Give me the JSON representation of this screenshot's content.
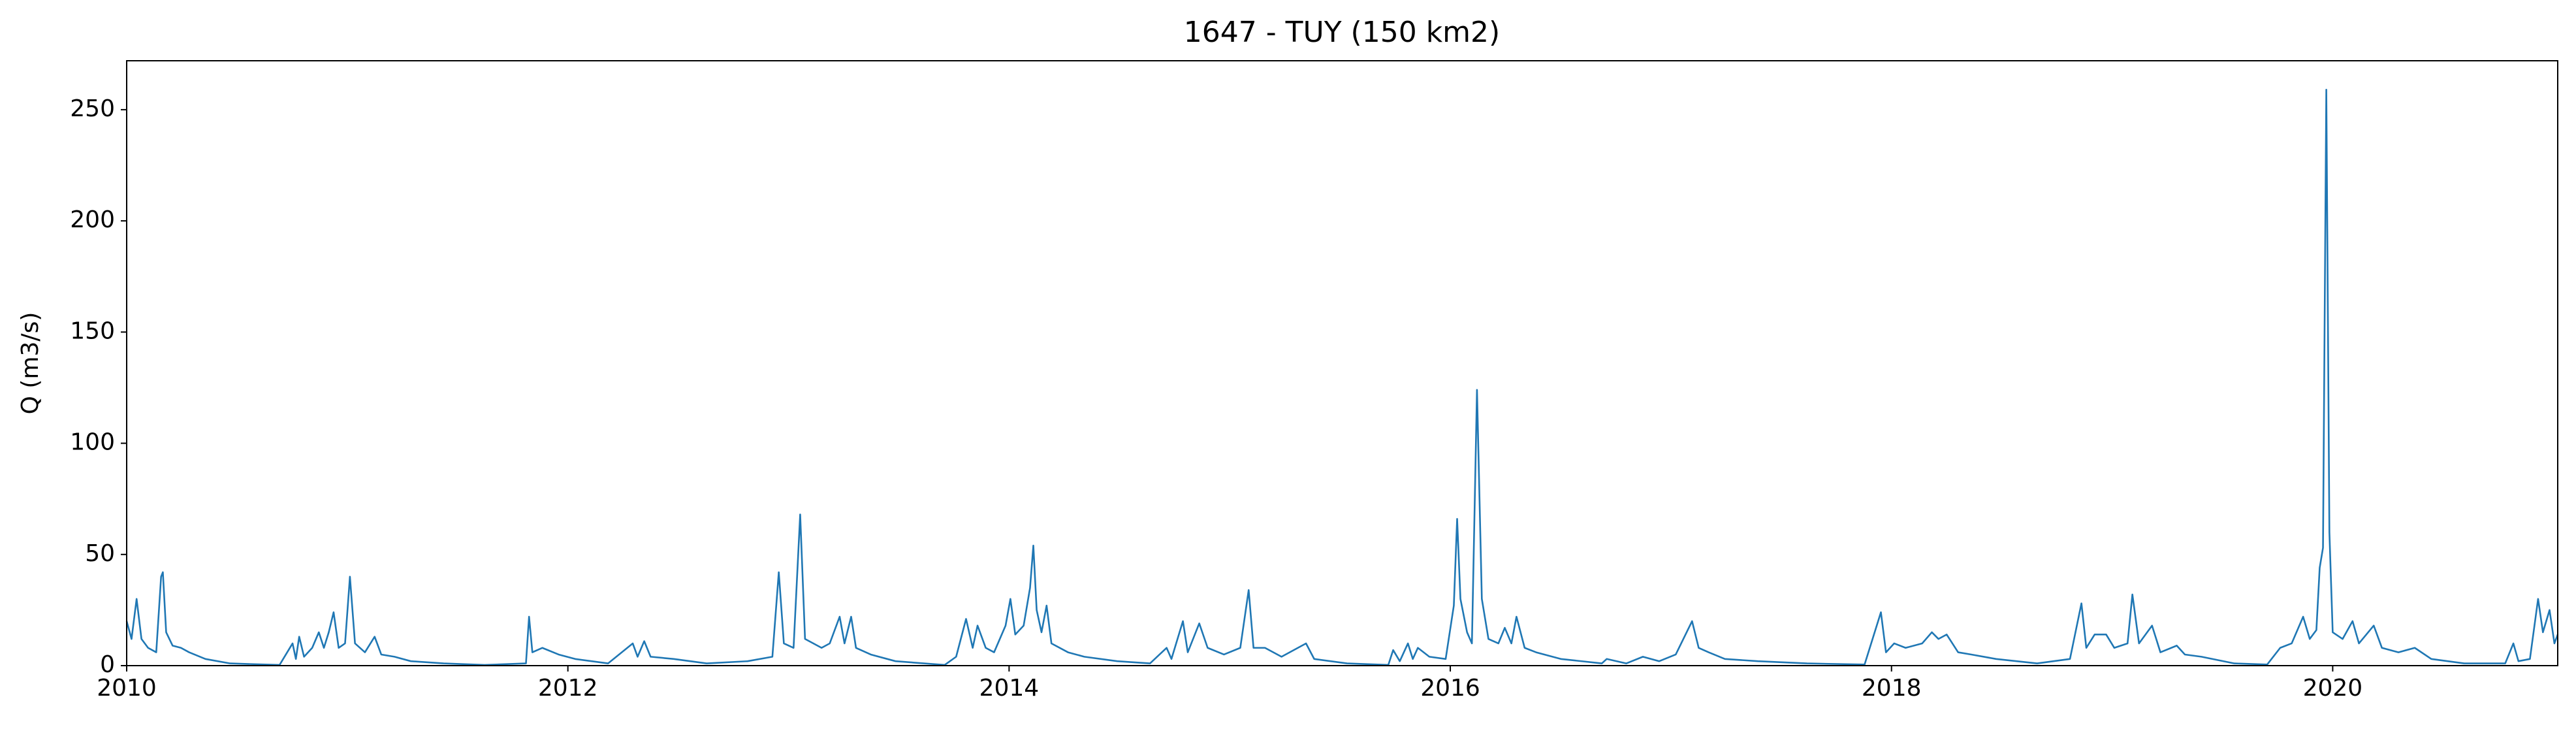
{
  "chart_data": {
    "type": "line",
    "title": "1647 - TUY (150 km2)",
    "y_label": "Q (m3/s)",
    "color": "#1f77b4",
    "x": [
      2010.0,
      2010.022,
      2010.045,
      2010.067,
      2010.097,
      2010.134,
      2010.156,
      2010.164,
      2010.179,
      2010.208,
      2010.246,
      2010.283,
      2010.357,
      2010.469,
      2010.693,
      2010.752,
      2010.767,
      2010.782,
      2010.804,
      2010.841,
      2010.871,
      2010.894,
      2010.916,
      2010.938,
      2010.961,
      2010.99,
      2011.012,
      2011.035,
      2011.08,
      2011.124,
      2011.154,
      2011.214,
      2011.288,
      2011.437,
      2011.623,
      2011.81,
      2011.824,
      2011.839,
      2011.884,
      2011.958,
      2012.033,
      2012.182,
      2012.294,
      2012.316,
      2012.346,
      2012.375,
      2012.48,
      2012.629,
      2012.815,
      2012.927,
      2012.956,
      2012.979,
      2013.023,
      2013.053,
      2013.075,
      2013.15,
      2013.187,
      2013.232,
      2013.254,
      2013.284,
      2013.306,
      2013.373,
      2013.485,
      2013.708,
      2013.76,
      2013.805,
      2013.835,
      2013.857,
      2013.894,
      2013.932,
      2013.984,
      2014.006,
      2014.028,
      2014.066,
      2014.095,
      2014.11,
      2014.125,
      2014.147,
      2014.17,
      2014.192,
      2014.267,
      2014.341,
      2014.49,
      2014.639,
      2014.714,
      2014.736,
      2014.788,
      2014.81,
      2014.862,
      2014.9,
      2014.974,
      2015.048,
      2015.086,
      2015.108,
      2015.16,
      2015.235,
      2015.346,
      2015.383,
      2015.532,
      2015.719,
      2015.741,
      2015.771,
      2015.808,
      2015.83,
      2015.853,
      2015.905,
      2015.979,
      2016.016,
      2016.031,
      2016.046,
      2016.076,
      2016.098,
      2016.121,
      2016.143,
      2016.173,
      2016.218,
      2016.247,
      2016.277,
      2016.3,
      2016.337,
      2016.389,
      2016.501,
      2016.687,
      2016.709,
      2016.798,
      2016.873,
      2016.947,
      2017.022,
      2017.096,
      2017.126,
      2017.171,
      2017.245,
      2017.394,
      2017.617,
      2017.878,
      2017.952,
      2017.975,
      2018.012,
      2018.064,
      2018.139,
      2018.183,
      2018.213,
      2018.25,
      2018.302,
      2018.362,
      2018.474,
      2018.66,
      2018.809,
      2018.861,
      2018.883,
      2018.921,
      2018.973,
      2019.01,
      2019.07,
      2019.092,
      2019.122,
      2019.181,
      2019.219,
      2019.293,
      2019.33,
      2019.405,
      2019.554,
      2019.703,
      2019.762,
      2019.814,
      2019.866,
      2019.896,
      2019.926,
      2019.941,
      2019.956,
      2019.971,
      2019.985,
      2020.0,
      2020.045,
      2020.09,
      2020.119,
      2020.186,
      2020.223,
      2020.298,
      2020.372,
      2020.447,
      2020.596,
      2020.782,
      2020.819,
      2020.842,
      2020.894,
      2020.931,
      2020.953,
      2020.983,
      2021.005,
      2021.02
    ],
    "values": [
      20,
      12,
      30,
      12,
      8,
      6,
      40,
      42,
      15,
      9,
      8,
      6,
      3,
      1,
      0.3,
      10,
      3,
      13,
      4,
      8,
      15,
      8,
      15,
      24,
      8,
      10,
      40,
      10,
      6,
      13,
      5,
      4,
      2,
      1,
      0.3,
      1,
      22,
      6,
      8,
      5,
      3,
      1,
      10,
      4,
      11,
      4,
      3,
      1,
      2,
      4,
      42,
      10,
      8,
      68,
      12,
      8,
      10,
      22,
      10,
      22,
      8,
      5,
      2,
      0.3,
      4,
      21,
      8,
      18,
      8,
      6,
      18,
      30,
      14,
      18,
      35,
      54,
      25,
      15,
      27,
      10,
      6,
      4,
      2,
      1,
      8,
      3,
      20,
      6,
      19,
      8,
      5,
      8,
      34,
      8,
      8,
      4,
      10,
      3,
      1,
      0.3,
      7,
      2,
      10,
      3,
      8,
      4,
      3,
      27,
      66,
      30,
      15,
      10,
      124,
      30,
      12,
      10,
      17,
      10,
      22,
      8,
      6,
      3,
      1,
      3,
      1,
      4,
      2,
      5,
      20,
      8,
      6,
      3,
      2,
      1,
      0.5,
      24,
      6,
      10,
      8,
      10,
      15,
      12,
      14,
      6,
      5,
      3,
      1,
      3,
      28,
      8,
      14,
      14,
      8,
      10,
      32,
      10,
      18,
      6,
      9,
      5,
      4,
      1,
      0.5,
      8,
      10,
      22,
      12,
      16,
      44,
      53,
      259,
      60,
      15,
      12,
      20,
      10,
      18,
      8,
      6,
      8,
      3,
      1,
      1,
      10,
      2,
      3,
      30,
      15,
      25,
      10,
      14
    ],
    "xlim": [
      2010,
      2021.02
    ],
    "xticks": [
      2010,
      2012,
      2014,
      2016,
      2018,
      2020
    ],
    "ylim": [
      0,
      272
    ],
    "yticks": [
      0,
      50,
      100,
      150,
      200,
      250
    ],
    "grid": false
  }
}
